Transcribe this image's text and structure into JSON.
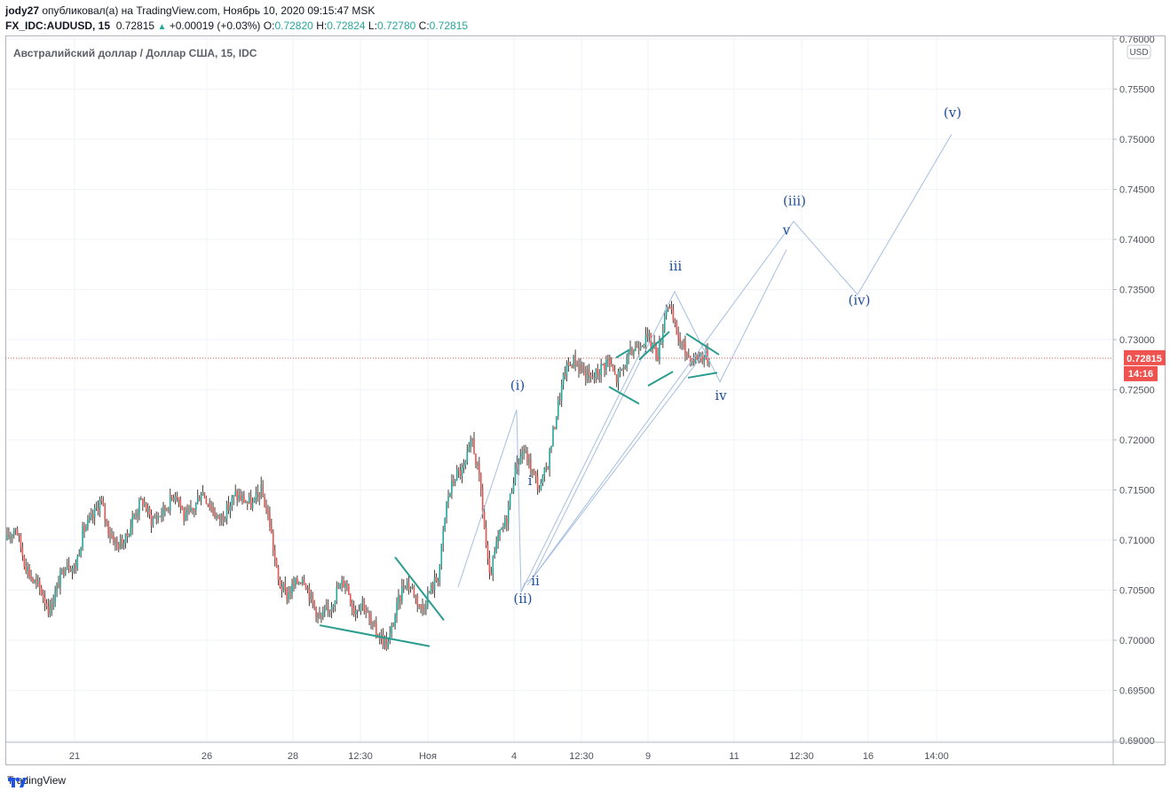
{
  "header": {
    "author": "jody27",
    "published_text": "опубликовал(а) на TradingView.com, Ноябрь 10, 2020 09:15:47 MSK",
    "symbol": "FX_IDC:AUDUSD, 15",
    "last": "0.72815",
    "change": "+0.00019 (+0.03%)",
    "o_label": "O:",
    "o": "0.72820",
    "h_label": "H:",
    "h": "0.72824",
    "l_label": "L:",
    "l": "0.72780",
    "c_label": "C:",
    "c": "0.72815"
  },
  "chart_title": "Австралийский доллар / Доллар США, 15, IDC",
  "currency_badge": "USD",
  "price_label": "0.72815",
  "countdown_label": "14:16",
  "footer": {
    "brand": "TradingView"
  },
  "colors": {
    "up": "#26a69a",
    "down": "#ef5350",
    "candle": "#4a3b35",
    "trendline": "#2a9d8f",
    "wave_line": "#a6bfe0",
    "wave_label": "#1f4e9a",
    "price_tag": "#ef5350"
  },
  "chart_data": {
    "type": "candlestick",
    "y_axis": {
      "range": [
        0.69,
        0.76
      ],
      "ticks": [
        "0.76000",
        "0.75500",
        "0.75000",
        "0.74500",
        "0.74000",
        "0.73500",
        "0.73000",
        "0.72500",
        "0.72000",
        "0.71500",
        "0.71000",
        "0.70500",
        "0.70000",
        "0.69500",
        "0.69000"
      ]
    },
    "x_axis": {
      "ticks": [
        "21",
        "26",
        "28",
        "12:30",
        "Ноя",
        "4",
        "12:30",
        "9",
        "11",
        "12:30",
        "16",
        "14:00"
      ]
    },
    "last_price": 0.72815,
    "price_anchors": [
      [
        0.71,
        0.7115
      ],
      [
        0.708,
        0.706
      ],
      [
        0.705,
        0.703
      ],
      [
        0.7055,
        0.708
      ],
      [
        0.707,
        0.711
      ],
      [
        0.712,
        0.714
      ],
      [
        0.711,
        0.7095
      ],
      [
        0.71,
        0.7125
      ],
      [
        0.714,
        0.712
      ],
      [
        0.7125,
        0.7135
      ],
      [
        0.715,
        0.712
      ],
      [
        0.713,
        0.715
      ],
      [
        0.7135,
        0.712
      ],
      [
        0.713,
        0.7145
      ],
      [
        0.714,
        0.7135
      ],
      [
        0.715,
        0.712
      ],
      [
        0.706,
        0.7045
      ],
      [
        0.7055,
        0.7065
      ],
      [
        0.704,
        0.702
      ],
      [
        0.703,
        0.705
      ],
      [
        0.706,
        0.703
      ],
      [
        0.704,
        0.7015
      ],
      [
        0.7005,
        0.6995
      ],
      [
        0.703,
        0.706
      ],
      [
        0.705,
        0.703
      ],
      [
        0.705,
        0.7065
      ],
      [
        0.714,
        0.7165
      ],
      [
        0.717,
        0.72
      ],
      [
        0.715,
        0.706
      ],
      [
        0.71,
        0.712
      ],
      [
        0.717,
        0.719
      ],
      [
        0.717,
        0.715
      ],
      [
        0.718,
        0.723
      ],
      [
        0.727,
        0.728
      ],
      [
        0.727,
        0.726
      ],
      [
        0.727,
        0.728
      ],
      [
        0.726,
        0.7275
      ],
      [
        0.729,
        0.73
      ],
      [
        0.73,
        0.7285
      ],
      [
        0.734,
        0.731
      ],
      [
        0.729,
        0.728
      ],
      [
        0.7285,
        0.72815
      ]
    ],
    "wave_paths": [
      [
        [
          0.7036,
          0.7165
        ],
        [
          0.723,
          0.7048
        ],
        [
          0.723,
          0.7235
        ]
      ],
      [
        [
          0.7048,
          0.7062
        ],
        [
          0.735,
          0.729
        ],
        [
          0.726,
          0.7265
        ]
      ],
      [
        [
          0.7062,
          0.741
        ],
        [
          0.7265,
          0.742
        ],
        [
          0.7345,
          0.7505
        ]
      ],
      [
        [
          0.7062,
          0.739
        ],
        [
          0.726,
          0.739
        ]
      ]
    ],
    "wave_labels": [
      {
        "text": "(i)",
        "price": 0.725
      },
      {
        "text": "(ii)",
        "price": 0.7037
      },
      {
        "text": "i",
        "price": 0.7155
      },
      {
        "text": "ii",
        "price": 0.7055
      },
      {
        "text": "iii",
        "price": 0.7369
      },
      {
        "text": "iv",
        "price": 0.724
      },
      {
        "text": "v",
        "price": 0.7405
      },
      {
        "text": "(iii)",
        "price": 0.7434
      },
      {
        "text": "(iv)",
        "price": 0.7335
      },
      {
        "text": "(v)",
        "price": 0.7522
      }
    ]
  }
}
